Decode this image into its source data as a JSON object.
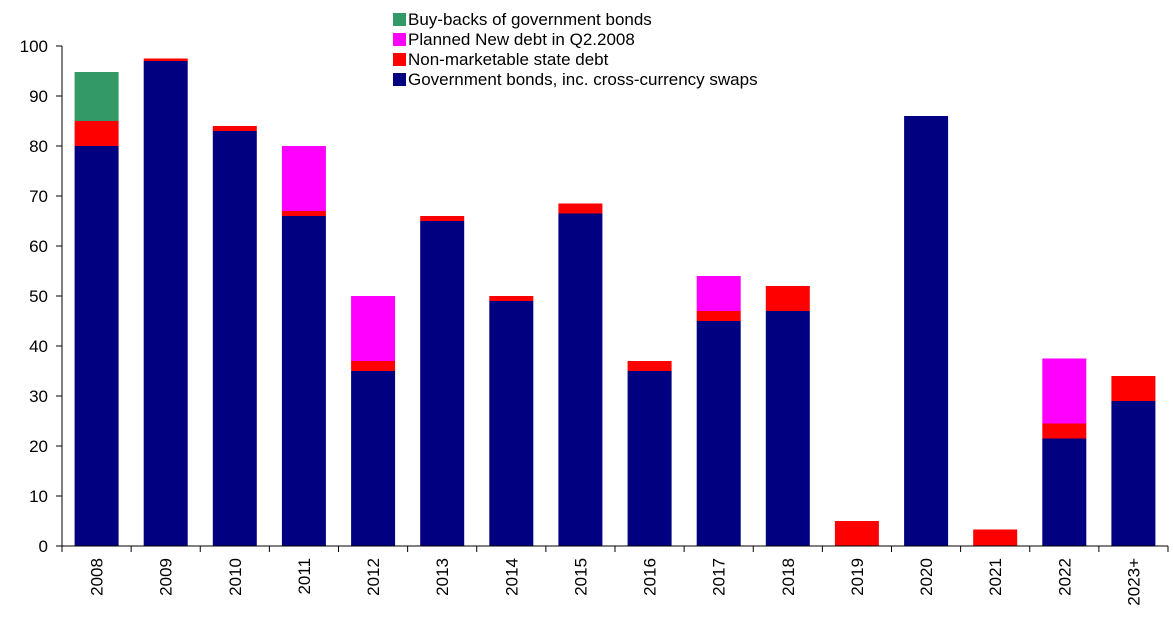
{
  "chart_data": {
    "type": "bar",
    "stacked": true,
    "categories": [
      "2008",
      "2009",
      "2010",
      "2011",
      "2012",
      "2013",
      "2014",
      "2015",
      "2016",
      "2017",
      "2018",
      "2019",
      "2020",
      "2021",
      "2022",
      "2023+"
    ],
    "series": [
      {
        "name": "Government bonds, inc. cross-currency swaps",
        "color": "#000080",
        "values": [
          80,
          97,
          83,
          66,
          35,
          65,
          49,
          66.5,
          35,
          45,
          47,
          0,
          86,
          0,
          21.5,
          29
        ]
      },
      {
        "name": "Non-marketable state debt",
        "color": "#ff0000",
        "values": [
          5,
          0.5,
          1,
          1,
          2,
          1,
          1,
          2,
          2,
          2,
          5,
          5,
          0,
          3.3,
          3,
          5
        ]
      },
      {
        "name": "Planned New debt in Q2.2008",
        "color": "#ff00ff",
        "values": [
          0,
          0,
          0,
          13,
          13,
          0,
          0,
          0,
          0,
          7,
          0,
          0,
          0,
          0,
          13,
          0
        ]
      },
      {
        "name": "Buy-backs of government bonds",
        "color": "#339966",
        "values": [
          9.8,
          0,
          0,
          0,
          0,
          0,
          0,
          0,
          0,
          0,
          0,
          0,
          0,
          0,
          0,
          0
        ]
      }
    ],
    "legend_order": [
      "Buy-backs of government bonds",
      "Planned New debt in Q2.2008",
      "Non-marketable state debt",
      "Government bonds, inc. cross-currency swaps"
    ],
    "legend_position": "top-center",
    "title": "",
    "xlabel": "",
    "ylabel": "",
    "ylim": [
      0,
      100
    ],
    "yticks": [
      0,
      10,
      20,
      30,
      40,
      50,
      60,
      70,
      80,
      90,
      100
    ],
    "grid": false
  }
}
